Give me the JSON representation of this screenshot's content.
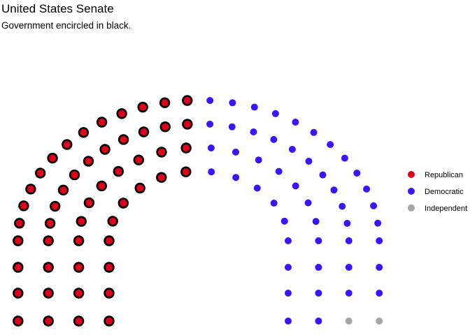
{
  "chart_data": {
    "type": "scatter",
    "title": "United States Senate",
    "subtitle": "Government encircled in black.",
    "grid": false,
    "legend_placement": "right",
    "parties": [
      {
        "name": "Republican",
        "seats": 50,
        "color": "#E0001B",
        "government": true
      },
      {
        "name": "Democratic",
        "seats": 48,
        "color": "#3A14FF",
        "government": false
      },
      {
        "name": "Independent",
        "seats": 2,
        "color": "#A6A6A6",
        "government": false
      }
    ]
  }
}
